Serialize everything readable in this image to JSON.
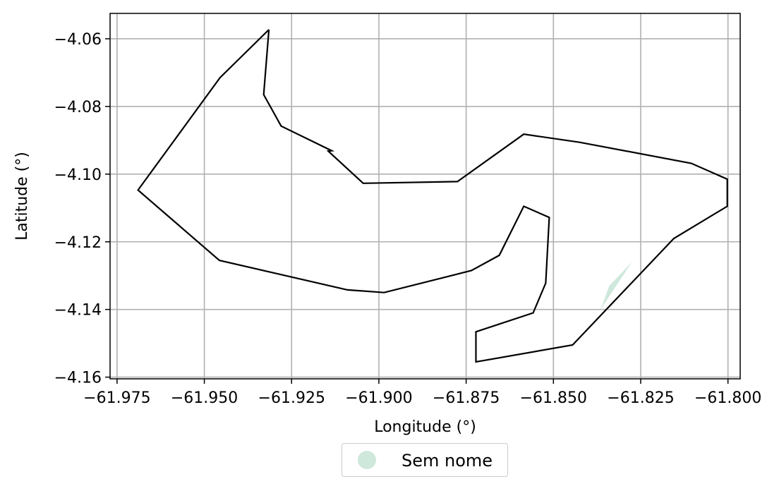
{
  "chart_data": {
    "type": "line",
    "xlabel": "Longitude (°)",
    "ylabel": "Latitude (°)",
    "xlim": [
      -61.977,
      -61.7965
    ],
    "ylim": [
      -4.1605,
      -4.0525
    ],
    "xticks": [
      -61.975,
      -61.95,
      -61.925,
      -61.9,
      -61.875,
      -61.85,
      -61.825,
      -61.8
    ],
    "xtick_labels": [
      "−61.975",
      "−61.950",
      "−61.925",
      "−61.900",
      "−61.875",
      "−61.850",
      "−61.825",
      "−61.800"
    ],
    "yticks": [
      -4.06,
      -4.08,
      -4.1,
      -4.12,
      -4.14,
      -4.16
    ],
    "ytick_labels": [
      "−4.06",
      "−4.08",
      "−4.10",
      "−4.12",
      "−4.14",
      "−4.16"
    ],
    "grid": true,
    "legend_position": "bottom-center",
    "series": [
      {
        "name": "Sem nome",
        "color": "#cfe8dc",
        "outline_color": "#000000",
        "x": [
          -61.9315,
          -61.9455,
          -61.969,
          -61.9457,
          -61.909,
          -61.8985,
          -61.8735,
          -61.8655,
          -61.8585,
          -61.8512,
          -61.8522,
          -61.8558,
          -61.8722,
          -61.8722,
          -61.8445,
          -61.8155,
          -61.8002,
          -61.8002,
          -61.8105,
          -61.8425,
          -61.8585,
          -61.8775,
          -61.9045,
          -61.9145,
          -61.9135,
          -61.928,
          -61.933,
          -61.9315
        ],
        "y": [
          -4.0573,
          -4.0715,
          -4.1047,
          -4.1255,
          -4.1342,
          -4.135,
          -4.1285,
          -4.124,
          -4.1095,
          -4.1128,
          -4.1322,
          -4.141,
          -4.1466,
          -4.1555,
          -4.1505,
          -4.119,
          -4.1095,
          -4.1015,
          -4.0968,
          -4.0906,
          -4.0882,
          -4.1022,
          -4.1027,
          -4.0932,
          -4.0931,
          -4.0858,
          -4.0765,
          -4.0573
        ]
      }
    ],
    "fill_sliver": {
      "x": [
        -61.8365,
        -61.8275,
        -61.834
      ],
      "y": [
        -4.14,
        -4.126,
        -4.133
      ]
    }
  },
  "legend": {
    "label": "Sem nome",
    "marker_color": "#cfe8dc"
  }
}
